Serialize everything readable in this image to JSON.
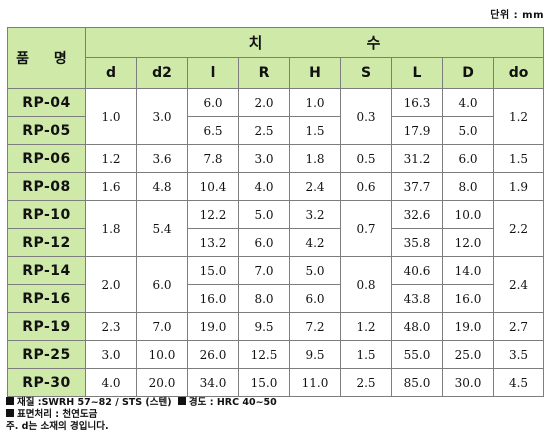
{
  "unit_label": "단위 : mm",
  "header": {
    "name_label": "품 명",
    "dimension_label_left": "치",
    "dimension_label_right": "수",
    "columns": [
      "d",
      "d2",
      "l",
      "R",
      "H",
      "S",
      "L",
      "D",
      "do"
    ]
  },
  "rows": [
    {
      "name": "RP-04",
      "d": "1.0",
      "d2": "3.0",
      "l": "6.0",
      "R": "2.0",
      "H": "1.0",
      "S": "0.3",
      "L": "16.3",
      "D": "4.0",
      "do": "1.2"
    },
    {
      "name": "RP-05",
      "d": "1.0",
      "d2": "3.0",
      "l": "6.5",
      "R": "2.5",
      "H": "1.5",
      "S": "0.3",
      "L": "17.9",
      "D": "5.0",
      "do": "1.2"
    },
    {
      "name": "RP-06",
      "d": "1.2",
      "d2": "3.6",
      "l": "7.8",
      "R": "3.0",
      "H": "1.8",
      "S": "0.5",
      "L": "31.2",
      "D": "6.0",
      "do": "1.5"
    },
    {
      "name": "RP-08",
      "d": "1.6",
      "d2": "4.8",
      "l": "10.4",
      "R": "4.0",
      "H": "2.4",
      "S": "0.6",
      "L": "37.7",
      "D": "8.0",
      "do": "1.9"
    },
    {
      "name": "RP-10",
      "d": "1.8",
      "d2": "5.4",
      "l": "12.2",
      "R": "5.0",
      "H": "3.2",
      "S": "0.7",
      "L": "32.6",
      "D": "10.0",
      "do": "2.2"
    },
    {
      "name": "RP-12",
      "d": "1.8",
      "d2": "5.4",
      "l": "13.2",
      "R": "6.0",
      "H": "4.2",
      "S": "0.7",
      "L": "35.8",
      "D": "12.0",
      "do": "2.2"
    },
    {
      "name": "RP-14",
      "d": "2.0",
      "d2": "6.0",
      "l": "15.0",
      "R": "7.0",
      "H": "5.0",
      "S": "0.8",
      "L": "40.6",
      "D": "14.0",
      "do": "2.4"
    },
    {
      "name": "RP-16",
      "d": "2.0",
      "d2": "6.0",
      "l": "16.0",
      "R": "8.0",
      "H": "6.0",
      "S": "0.8",
      "L": "43.8",
      "D": "16.0",
      "do": "2.4"
    },
    {
      "name": "RP-19",
      "d": "2.3",
      "d2": "7.0",
      "l": "19.0",
      "R": "9.5",
      "H": "7.2",
      "S": "1.2",
      "L": "48.0",
      "D": "19.0",
      "do": "2.7"
    },
    {
      "name": "RP-25",
      "d": "3.0",
      "d2": "10.0",
      "l": "26.0",
      "R": "12.5",
      "H": "9.5",
      "S": "1.5",
      "L": "55.0",
      "D": "25.0",
      "do": "3.5"
    },
    {
      "name": "RP-30",
      "d": "4.0",
      "d2": "20.0",
      "l": "34.0",
      "R": "15.0",
      "H": "11.0",
      "S": "2.5",
      "L": "85.0",
      "D": "30.0",
      "do": "4.5"
    }
  ],
  "notes": {
    "material": "재질 :SWRH 57~82 / STS (스텐)",
    "hardness": "경도 : HRC 40~50",
    "surface": "표면처리 : 천연도금",
    "note": "주. d는 소재의 경입니다."
  }
}
